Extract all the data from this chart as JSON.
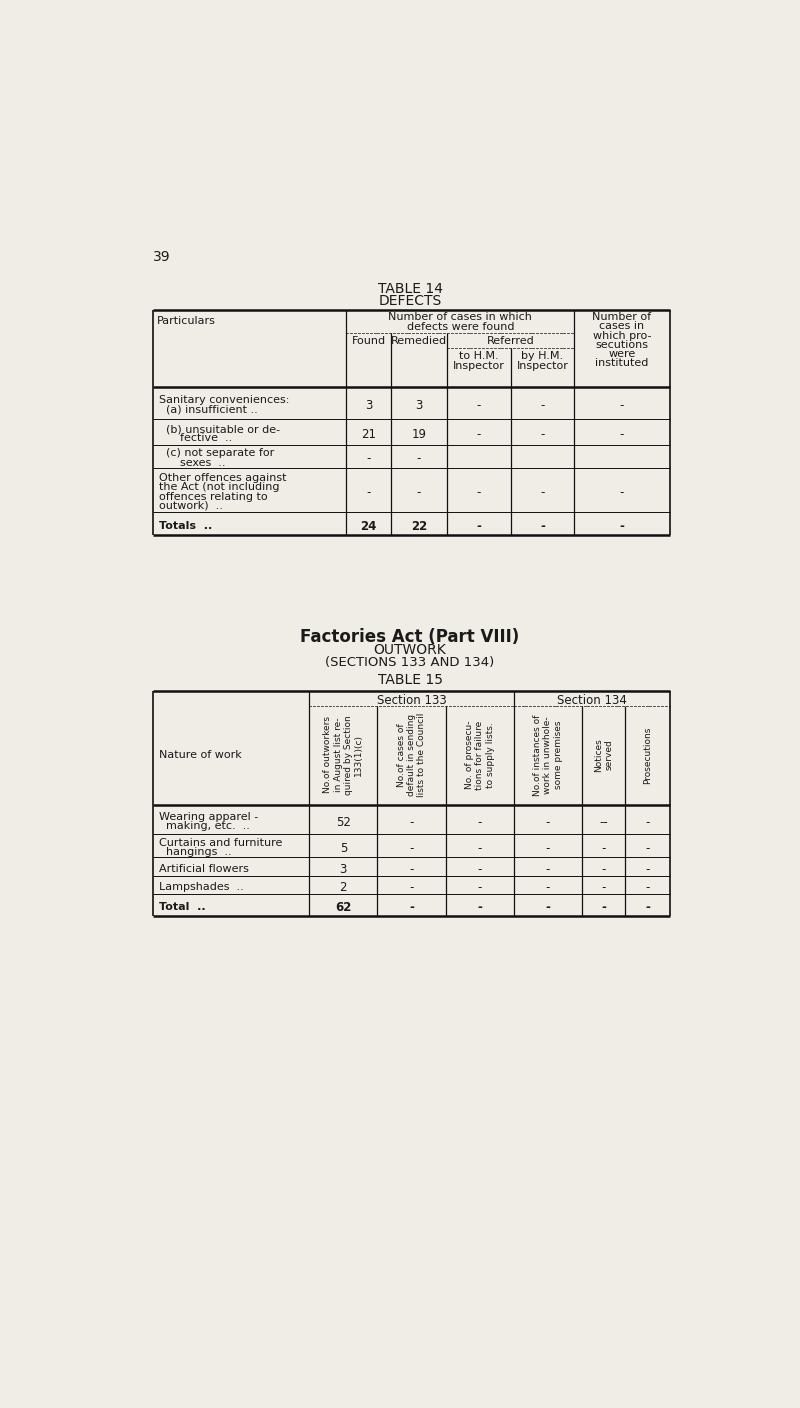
{
  "page_number": "39",
  "bg_color": "#f0ece6",
  "table14_title": "TABLE 14",
  "table14_subtitle": "DEFECTS",
  "table14_rows": [
    [
      "Sanitary conveniences:\n  (a) insufficient ..",
      "3",
      "3",
      "-",
      "-",
      "-"
    ],
    [
      "  (b) unsuitable or de-\n      fective  ..",
      "21",
      "19",
      "-",
      "-",
      "-"
    ],
    [
      "  (c) not separate for\n      sexes  ..",
      "-",
      "-",
      "",
      "",
      ""
    ],
    [
      "Other offences against\nthe Act (not including\noffences relating to\noutwork)  ..",
      "-",
      "-",
      "-",
      "-",
      "-"
    ],
    [
      "Totals  ..",
      "24",
      "22",
      "-",
      "-",
      "-"
    ]
  ],
  "table14_is_total": [
    false,
    false,
    false,
    false,
    true
  ],
  "middle_title1": "Factories Act (Part VIII)",
  "middle_title2": "OUTWORK",
  "middle_title3": "(SECTIONS 133 AND 134)",
  "table15_title": "TABLE 15",
  "table15_section133": "Section 133",
  "table15_section134": "Section 134",
  "table15_col1": "Nature of work",
  "table15_col2": "No.of outworkers\nin August list re-\nquired by Section\n133(1)(c)",
  "table15_col3": "No.of cases of\ndefault in sending\nlists to the Council",
  "table15_col4": "No. of prosecu-\ntions for failure\nto supply lists.",
  "table15_col5": "No.of instances of\nwork in unwhole-\nsome premises",
  "table15_col6": "Notices\nserved",
  "table15_col7": "Prosecutions",
  "table15_rows": [
    [
      "Wearing apparel -\n  making, etc.  ..",
      "52",
      "-",
      "-",
      "-",
      "--",
      "-"
    ],
    [
      "Curtains and furniture\n  hangings  ..",
      "5",
      "-",
      "-",
      "-",
      "-",
      "-"
    ],
    [
      "Artificial flowers",
      "3",
      "-",
      "-",
      "-",
      "-",
      "-"
    ],
    [
      "Lampshades  ..",
      "2",
      "-",
      "-",
      "-",
      "-",
      "-"
    ],
    [
      "Total  ..",
      "62",
      "-",
      "-",
      "-",
      "-",
      "-"
    ]
  ],
  "table15_is_total": [
    false,
    false,
    false,
    false,
    true
  ]
}
